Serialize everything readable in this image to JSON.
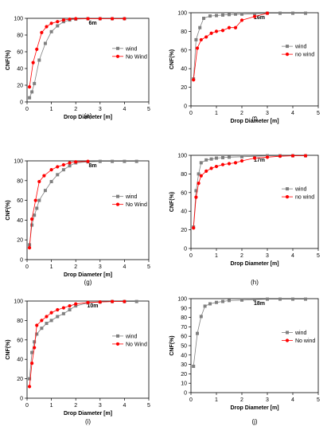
{
  "colors": {
    "wind": "#808080",
    "nowind": "#ff0000",
    "axis": "#000000"
  },
  "chart_data": [
    {
      "type": "line",
      "panel": "(e)",
      "title": "6m",
      "xlabel": "Drop Diameter [m]",
      "ylabel": "CNF(%)",
      "xlim": [
        0,
        5
      ],
      "ylim": [
        0,
        100
      ],
      "xticks": [
        0,
        1,
        2,
        3,
        4,
        5
      ],
      "yticks": [
        0,
        20,
        40,
        60,
        80,
        100
      ],
      "legend": "right",
      "series": [
        {
          "name": "wind",
          "color": "#808080",
          "marker": "square",
          "x": [
            0.1,
            0.2,
            0.3,
            0.5,
            0.75,
            1.0,
            1.25,
            1.5,
            1.75,
            2.0,
            2.5,
            3.0,
            3.5,
            4.0
          ],
          "y": [
            5,
            12,
            22,
            50,
            70,
            84,
            91,
            96,
            98,
            99,
            99.5,
            99.5,
            99.5,
            99.5
          ]
        },
        {
          "name": "No Wind",
          "color": "#ff0000",
          "marker": "circle",
          "x": [
            0.1,
            0.25,
            0.4,
            0.6,
            0.8,
            1.0,
            1.25,
            1.5,
            1.75,
            2.0,
            2.5,
            3.0,
            3.5,
            4.0
          ],
          "y": [
            18,
            47,
            63,
            83,
            90,
            94,
            96,
            98,
            99,
            99.5,
            99.5,
            99.5,
            99.5,
            99.5
          ]
        }
      ]
    },
    {
      "type": "line",
      "panel": "(f)",
      "title": "16m",
      "xlabel": "Drop Diameter [m]",
      "ylabel": "CNF(%)",
      "xlim": [
        0,
        5
      ],
      "ylim": [
        0,
        100
      ],
      "xticks": [
        0,
        1,
        2,
        3,
        4,
        5
      ],
      "yticks": [
        0,
        20,
        40,
        60,
        80,
        100
      ],
      "legend": "right",
      "series": [
        {
          "name": "wind",
          "color": "#808080",
          "marker": "square",
          "x": [
            0.1,
            0.2,
            0.35,
            0.5,
            0.75,
            1.0,
            1.25,
            1.5,
            1.75,
            2.0,
            2.5,
            3.0,
            3.5,
            4.0,
            4.5
          ],
          "y": [
            29,
            71,
            84,
            94,
            96.5,
            97,
            97.5,
            98,
            98.5,
            98.5,
            99,
            99.5,
            99.5,
            99.5,
            99.5
          ]
        },
        {
          "name": "no wind",
          "color": "#ff0000",
          "marker": "circle",
          "x": [
            0.1,
            0.25,
            0.4,
            0.6,
            0.8,
            1.0,
            1.25,
            1.5,
            1.75,
            2.0,
            2.5,
            3.0
          ],
          "y": [
            28,
            62,
            71,
            74,
            78,
            80,
            81,
            84,
            84,
            92,
            96,
            99.5
          ]
        }
      ]
    },
    {
      "type": "line",
      "panel": "(g)",
      "title": "8m",
      "xlabel": "Drop Diameter [m]",
      "ylabel": "CNF(%)",
      "xlim": [
        0,
        5
      ],
      "ylim": [
        0,
        100
      ],
      "xticks": [
        0,
        1,
        2,
        3,
        4,
        5
      ],
      "yticks": [
        0,
        20,
        40,
        60,
        80,
        100
      ],
      "legend": "right",
      "series": [
        {
          "name": "wind",
          "color": "#808080",
          "marker": "square",
          "x": [
            0.1,
            0.2,
            0.3,
            0.4,
            0.5,
            0.75,
            1.0,
            1.25,
            1.5,
            1.75,
            2.0,
            2.5,
            3.0,
            3.5,
            4.0,
            4.5
          ],
          "y": [
            15,
            35,
            45,
            52,
            60,
            70,
            79,
            86,
            91,
            95,
            98,
            99,
            99.5,
            99.5,
            99.5,
            99.5
          ]
        },
        {
          "name": "No Wind",
          "color": "#ff0000",
          "marker": "circle",
          "x": [
            0.1,
            0.2,
            0.35,
            0.5,
            0.7,
            1.0,
            1.25,
            1.5,
            1.75,
            2.0,
            2.5
          ],
          "y": [
            12,
            41,
            60,
            79,
            85,
            91,
            94,
            96,
            98,
            99,
            99.5
          ]
        }
      ]
    },
    {
      "type": "line",
      "panel": "(h)",
      "title": "17m",
      "xlabel": "Drop Diameter [m]",
      "ylabel": "CNF(%)",
      "xlim": [
        0,
        5
      ],
      "ylim": [
        0,
        100
      ],
      "xticks": [
        0,
        1,
        2,
        3,
        4,
        5
      ],
      "yticks": [
        0,
        20,
        40,
        60,
        80,
        100
      ],
      "legend": "right",
      "series": [
        {
          "name": "wind",
          "color": "#808080",
          "marker": "square",
          "x": [
            0.1,
            0.2,
            0.3,
            0.4,
            0.6,
            0.8,
            1.0,
            1.25,
            1.5,
            2.0,
            2.5,
            3.0,
            3.5,
            4.0,
            4.5
          ],
          "y": [
            23,
            62,
            80,
            92,
            95,
            96,
            97,
            97.5,
            98,
            98.5,
            99,
            99.5,
            99.5,
            99.5,
            99.5
          ]
        },
        {
          "name": "no wind",
          "color": "#ff0000",
          "marker": "circle",
          "x": [
            0.1,
            0.2,
            0.3,
            0.4,
            0.6,
            0.8,
            1.0,
            1.25,
            1.5,
            1.75,
            2.0,
            2.5,
            3.0,
            3.5,
            4.0,
            4.5
          ],
          "y": [
            22,
            55,
            70,
            78,
            83,
            86,
            88,
            90,
            91,
            92,
            94,
            97,
            98,
            99,
            99.5,
            99.5
          ]
        }
      ]
    },
    {
      "type": "line",
      "panel": "(i)",
      "title": "10m",
      "xlabel": "Drop Diameter [m]",
      "ylabel": "CNF(%)",
      "xlim": [
        0,
        5
      ],
      "ylim": [
        0,
        100
      ],
      "xticks": [
        0,
        1,
        2,
        3,
        4,
        5
      ],
      "yticks": [
        0,
        20,
        40,
        60,
        80,
        100
      ],
      "legend": "right",
      "series": [
        {
          "name": "wind",
          "color": "#808080",
          "marker": "square",
          "x": [
            0.1,
            0.2,
            0.3,
            0.4,
            0.6,
            0.8,
            1.0,
            1.25,
            1.5,
            1.75,
            2.0,
            2.5,
            3.0,
            3.5,
            4.0,
            4.5
          ],
          "y": [
            20,
            47,
            58,
            66,
            72,
            77,
            80,
            84,
            87,
            91,
            95,
            98,
            99,
            99.5,
            99.5,
            99.5
          ]
        },
        {
          "name": "No Wind",
          "color": "#ff0000",
          "marker": "circle",
          "x": [
            0.1,
            0.2,
            0.3,
            0.4,
            0.6,
            0.8,
            1.0,
            1.25,
            1.5,
            1.75,
            2.0,
            2.5,
            3.0,
            3.5,
            4.0
          ],
          "y": [
            12,
            36,
            52,
            75,
            80,
            84,
            88,
            91,
            93,
            95,
            97,
            98.5,
            99,
            99.5,
            99.5
          ]
        }
      ]
    },
    {
      "type": "line",
      "panel": "(j)",
      "title": "18m",
      "xlabel": "Drop Diameter [m]",
      "ylabel": "CNF(%)",
      "xlim": [
        0,
        5
      ],
      "ylim": [
        0,
        100
      ],
      "xticks": [
        0,
        1,
        2,
        3,
        4,
        5
      ],
      "yticks": [
        0,
        10,
        20,
        30,
        40,
        50,
        60,
        70,
        80,
        90,
        100
      ],
      "legend": "right",
      "series": [
        {
          "name": "wind",
          "color": "#808080",
          "marker": "square",
          "x": [
            0.1,
            0.25,
            0.4,
            0.55,
            0.75,
            1.0,
            1.25,
            1.5,
            2.0,
            2.5,
            3.0,
            3.5,
            4.0,
            4.5
          ],
          "y": [
            28,
            63,
            81,
            92,
            94.5,
            96,
            97,
            98,
            98.5,
            99,
            99.5,
            99.5,
            99.5,
            99.5
          ]
        },
        {
          "name": "No wind",
          "color": "#ff0000",
          "marker": "circle",
          "x": [],
          "y": []
        }
      ]
    }
  ]
}
